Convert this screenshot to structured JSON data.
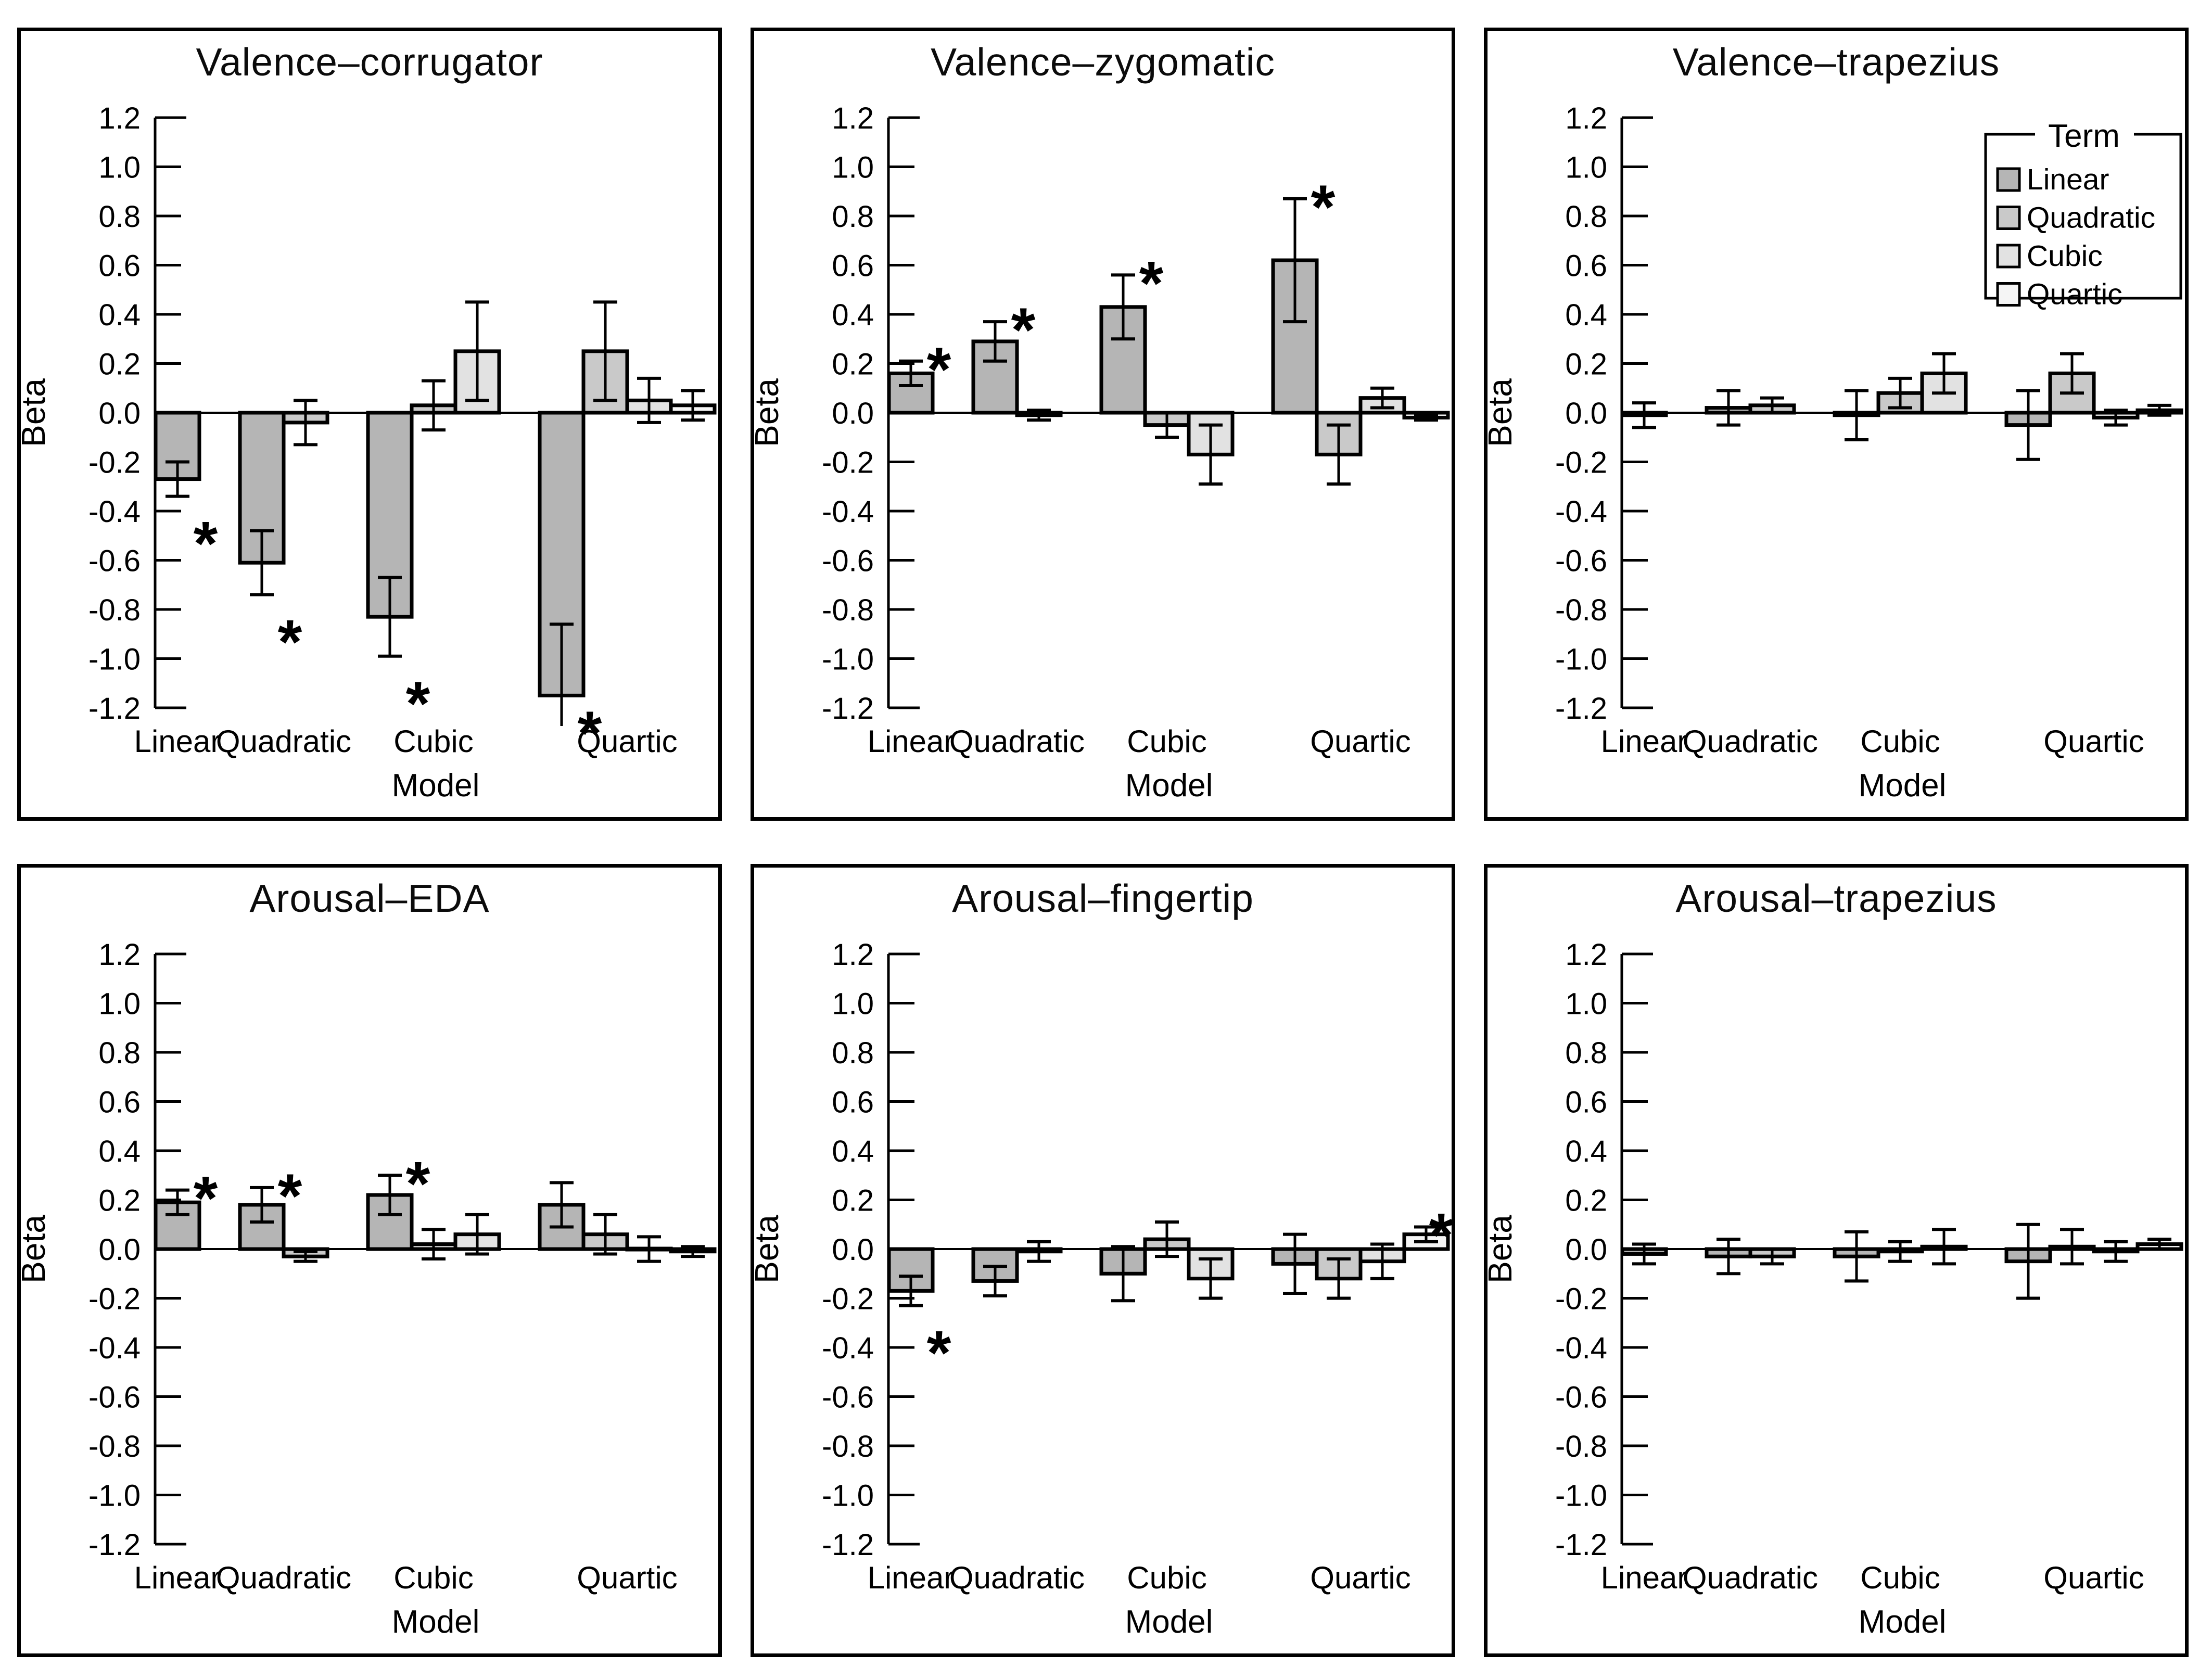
{
  "figure": {
    "background": "#ffffff",
    "panel_border_color": "#000000",
    "bar_outline_color": "#000000",
    "error_bar_color": "#000000",
    "significance_symbol": "*"
  },
  "legend": {
    "title": "Term",
    "position": "top-right of Valence–trapezius panel",
    "items": [
      {
        "label": "Linear",
        "color": "#b5b5b5"
      },
      {
        "label": "Quadratic",
        "color": "#c9c9c9"
      },
      {
        "label": "Cubic",
        "color": "#e2e2e2"
      },
      {
        "label": "Quartic",
        "color": "#f5f5f5"
      }
    ]
  },
  "chart_data": [
    {
      "type": "bar",
      "title": "Valence–corrugator",
      "xlabel": "Model",
      "ylabel": "Beta",
      "ylim": [
        -1.2,
        1.2
      ],
      "ytick_step": 0.2,
      "grid": false,
      "legend_visible": false,
      "categories": [
        "Linear",
        "Quadratic",
        "Cubic",
        "Quartic"
      ],
      "groups": [
        {
          "model": "Linear",
          "bars": [
            {
              "term": "Linear",
              "value": -0.27,
              "error": 0.07,
              "significant": true
            }
          ]
        },
        {
          "model": "Quadratic",
          "bars": [
            {
              "term": "Linear",
              "value": -0.61,
              "error": 0.13,
              "significant": true
            },
            {
              "term": "Quadratic",
              "value": -0.04,
              "error": 0.09,
              "significant": false
            }
          ]
        },
        {
          "model": "Cubic",
          "bars": [
            {
              "term": "Linear",
              "value": -0.83,
              "error": 0.16,
              "significant": true
            },
            {
              "term": "Quadratic",
              "value": 0.03,
              "error": 0.1,
              "significant": false
            },
            {
              "term": "Cubic",
              "value": 0.25,
              "error": 0.2,
              "significant": false
            }
          ]
        },
        {
          "model": "Quartic",
          "bars": [
            {
              "term": "Linear",
              "value": -1.15,
              "error": 0.29,
              "significant": true
            },
            {
              "term": "Quadratic",
              "value": 0.25,
              "error": 0.2,
              "significant": false
            },
            {
              "term": "Cubic",
              "value": 0.05,
              "error": 0.09,
              "significant": false
            },
            {
              "term": "Quartic",
              "value": 0.03,
              "error": 0.06,
              "significant": false
            }
          ]
        }
      ]
    },
    {
      "type": "bar",
      "title": "Valence–zygomatic",
      "xlabel": "Model",
      "ylabel": "Beta",
      "ylim": [
        -1.2,
        1.2
      ],
      "ytick_step": 0.2,
      "grid": false,
      "legend_visible": false,
      "categories": [
        "Linear",
        "Quadratic",
        "Cubic",
        "Quartic"
      ],
      "groups": [
        {
          "model": "Linear",
          "bars": [
            {
              "term": "Linear",
              "value": 0.16,
              "error": 0.05,
              "significant": true
            }
          ]
        },
        {
          "model": "Quadratic",
          "bars": [
            {
              "term": "Linear",
              "value": 0.29,
              "error": 0.08,
              "significant": true
            },
            {
              "term": "Quadratic",
              "value": -0.01,
              "error": 0.02,
              "significant": false
            }
          ]
        },
        {
          "model": "Cubic",
          "bars": [
            {
              "term": "Linear",
              "value": 0.43,
              "error": 0.13,
              "significant": true
            },
            {
              "term": "Quadratic",
              "value": -0.05,
              "error": 0.05,
              "significant": false
            },
            {
              "term": "Cubic",
              "value": -0.17,
              "error": 0.12,
              "significant": false
            }
          ]
        },
        {
          "model": "Quartic",
          "bars": [
            {
              "term": "Linear",
              "value": 0.62,
              "error": 0.25,
              "significant": true
            },
            {
              "term": "Quadratic",
              "value": -0.17,
              "error": 0.12,
              "significant": false
            },
            {
              "term": "Cubic",
              "value": 0.06,
              "error": 0.04,
              "significant": false
            },
            {
              "term": "Quartic",
              "value": -0.02,
              "error": 0.01,
              "significant": false
            }
          ]
        }
      ]
    },
    {
      "type": "bar",
      "title": "Valence–trapezius",
      "xlabel": "Model",
      "ylabel": "Beta",
      "ylim": [
        -1.2,
        1.2
      ],
      "ytick_step": 0.2,
      "grid": false,
      "legend_visible": true,
      "categories": [
        "Linear",
        "Quadratic",
        "Cubic",
        "Quartic"
      ],
      "groups": [
        {
          "model": "Linear",
          "bars": [
            {
              "term": "Linear",
              "value": -0.01,
              "error": 0.05,
              "significant": false
            }
          ]
        },
        {
          "model": "Quadratic",
          "bars": [
            {
              "term": "Linear",
              "value": 0.02,
              "error": 0.07,
              "significant": false
            },
            {
              "term": "Quadratic",
              "value": 0.03,
              "error": 0.03,
              "significant": false
            }
          ]
        },
        {
          "model": "Cubic",
          "bars": [
            {
              "term": "Linear",
              "value": -0.01,
              "error": 0.1,
              "significant": false
            },
            {
              "term": "Quadratic",
              "value": 0.08,
              "error": 0.06,
              "significant": false
            },
            {
              "term": "Cubic",
              "value": 0.16,
              "error": 0.08,
              "significant": false
            }
          ]
        },
        {
          "model": "Quartic",
          "bars": [
            {
              "term": "Linear",
              "value": -0.05,
              "error": 0.14,
              "significant": false
            },
            {
              "term": "Quadratic",
              "value": 0.16,
              "error": 0.08,
              "significant": false
            },
            {
              "term": "Cubic",
              "value": -0.02,
              "error": 0.03,
              "significant": false
            },
            {
              "term": "Quartic",
              "value": 0.01,
              "error": 0.02,
              "significant": false
            }
          ]
        }
      ]
    },
    {
      "type": "bar",
      "title": "Arousal–EDA",
      "xlabel": "Model",
      "ylabel": "Beta",
      "ylim": [
        -1.2,
        1.2
      ],
      "ytick_step": 0.2,
      "grid": false,
      "legend_visible": false,
      "categories": [
        "Linear",
        "Quadratic",
        "Cubic",
        "Quartic"
      ],
      "groups": [
        {
          "model": "Linear",
          "bars": [
            {
              "term": "Linear",
              "value": 0.19,
              "error": 0.05,
              "significant": true
            }
          ]
        },
        {
          "model": "Quadratic",
          "bars": [
            {
              "term": "Linear",
              "value": 0.18,
              "error": 0.07,
              "significant": true
            },
            {
              "term": "Quadratic",
              "value": -0.03,
              "error": 0.02,
              "significant": false
            }
          ]
        },
        {
          "model": "Cubic",
          "bars": [
            {
              "term": "Linear",
              "value": 0.22,
              "error": 0.08,
              "significant": true
            },
            {
              "term": "Quadratic",
              "value": 0.02,
              "error": 0.06,
              "significant": false
            },
            {
              "term": "Cubic",
              "value": 0.06,
              "error": 0.08,
              "significant": false
            }
          ]
        },
        {
          "model": "Quartic",
          "bars": [
            {
              "term": "Linear",
              "value": 0.18,
              "error": 0.09,
              "significant": false
            },
            {
              "term": "Quadratic",
              "value": 0.06,
              "error": 0.08,
              "significant": false
            },
            {
              "term": "Cubic",
              "value": 0.0,
              "error": 0.05,
              "significant": false
            },
            {
              "term": "Quartic",
              "value": -0.01,
              "error": 0.02,
              "significant": false
            }
          ]
        }
      ]
    },
    {
      "type": "bar",
      "title": "Arousal–fingertip",
      "xlabel": "Model",
      "ylabel": "Beta",
      "ylim": [
        -1.2,
        1.2
      ],
      "ytick_step": 0.2,
      "grid": false,
      "legend_visible": false,
      "categories": [
        "Linear",
        "Quadratic",
        "Cubic",
        "Quartic"
      ],
      "groups": [
        {
          "model": "Linear",
          "bars": [
            {
              "term": "Linear",
              "value": -0.17,
              "error": 0.06,
              "significant": true
            }
          ]
        },
        {
          "model": "Quadratic",
          "bars": [
            {
              "term": "Linear",
              "value": -0.13,
              "error": 0.06,
              "significant": false
            },
            {
              "term": "Quadratic",
              "value": -0.01,
              "error": 0.04,
              "significant": false
            }
          ]
        },
        {
          "model": "Cubic",
          "bars": [
            {
              "term": "Linear",
              "value": -0.1,
              "error": 0.11,
              "significant": false
            },
            {
              "term": "Quadratic",
              "value": 0.04,
              "error": 0.07,
              "significant": false
            },
            {
              "term": "Cubic",
              "value": -0.12,
              "error": 0.08,
              "significant": false
            }
          ]
        },
        {
          "model": "Quartic",
          "bars": [
            {
              "term": "Linear",
              "value": -0.06,
              "error": 0.12,
              "significant": false
            },
            {
              "term": "Quadratic",
              "value": -0.12,
              "error": 0.08,
              "significant": false
            },
            {
              "term": "Cubic",
              "value": -0.05,
              "error": 0.07,
              "significant": false
            },
            {
              "term": "Quartic",
              "value": 0.06,
              "error": 0.03,
              "significant": true
            }
          ]
        }
      ]
    },
    {
      "type": "bar",
      "title": "Arousal–trapezius",
      "xlabel": "Model",
      "ylabel": "Beta",
      "ylim": [
        -1.2,
        1.2
      ],
      "ytick_step": 0.2,
      "grid": false,
      "legend_visible": false,
      "categories": [
        "Linear",
        "Quadratic",
        "Cubic",
        "Quartic"
      ],
      "groups": [
        {
          "model": "Linear",
          "bars": [
            {
              "term": "Linear",
              "value": -0.02,
              "error": 0.04,
              "significant": false
            }
          ]
        },
        {
          "model": "Quadratic",
          "bars": [
            {
              "term": "Linear",
              "value": -0.03,
              "error": 0.07,
              "significant": false
            },
            {
              "term": "Quadratic",
              "value": -0.03,
              "error": 0.03,
              "significant": false
            }
          ]
        },
        {
          "model": "Cubic",
          "bars": [
            {
              "term": "Linear",
              "value": -0.03,
              "error": 0.1,
              "significant": false
            },
            {
              "term": "Quadratic",
              "value": -0.01,
              "error": 0.04,
              "significant": false
            },
            {
              "term": "Cubic",
              "value": 0.01,
              "error": 0.07,
              "significant": false
            }
          ]
        },
        {
          "model": "Quartic",
          "bars": [
            {
              "term": "Linear",
              "value": -0.05,
              "error": 0.15,
              "significant": false
            },
            {
              "term": "Quadratic",
              "value": 0.01,
              "error": 0.07,
              "significant": false
            },
            {
              "term": "Cubic",
              "value": -0.01,
              "error": 0.04,
              "significant": false
            },
            {
              "term": "Quartic",
              "value": 0.02,
              "error": 0.02,
              "significant": false
            }
          ]
        }
      ]
    }
  ]
}
